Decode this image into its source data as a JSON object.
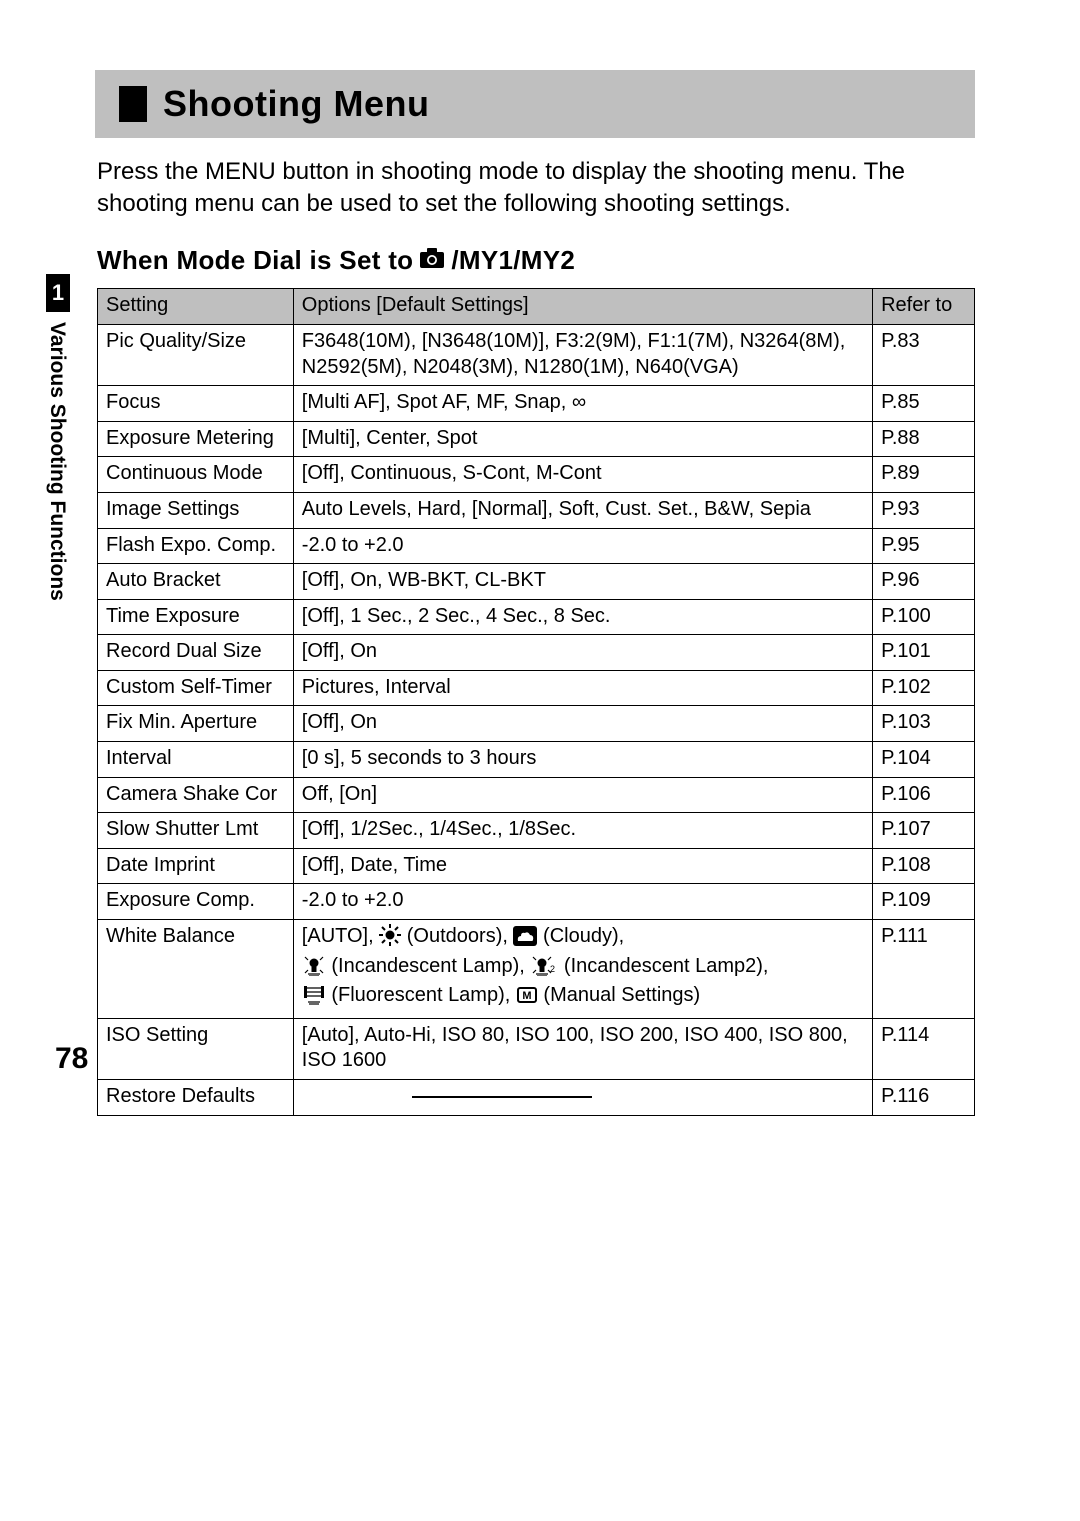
{
  "title": "Shooting Menu",
  "introText": "Press the MENU button in shooting mode to display the shooting menu. The shooting menu can be used to set the following shooting settings.",
  "subheadPrefix": "When Mode Dial is Set to ",
  "subheadSuffix": "/MY1/MY2",
  "sideTabNumber": "1",
  "sideLabel": "Various Shooting Functions",
  "pageNumber": "78",
  "table": {
    "headers": {
      "setting": "Setting",
      "options": "Options [Default Settings]",
      "refer": "Refer to"
    },
    "rows": [
      {
        "setting": "Pic Quality/Size",
        "options": "F3648(10M), [N3648(10M)], F3:2(9M), F1:1(7M), N3264(8M), N2592(5M), N2048(3M), N1280(1M), N640(VGA)",
        "ref": "P.83"
      },
      {
        "setting": "Focus",
        "options": "[Multi AF], Spot AF, MF, Snap, ∞",
        "ref": "P.85"
      },
      {
        "setting": "Exposure Metering",
        "options": "[Multi], Center, Spot",
        "ref": "P.88"
      },
      {
        "setting": "Continuous Mode",
        "options": "[Off], Continuous, S-Cont, M-Cont",
        "ref": "P.89"
      },
      {
        "setting": "Image Settings",
        "options": "Auto Levels, Hard, [Normal], Soft, Cust. Set., B&W, Sepia",
        "ref": "P.93"
      },
      {
        "setting": "Flash Expo. Comp.",
        "options": "-2.0 to +2.0",
        "ref": "P.95"
      },
      {
        "setting": "Auto Bracket",
        "options": "[Off], On, WB-BKT, CL-BKT",
        "ref": "P.96"
      },
      {
        "setting": "Time Exposure",
        "options": "[Off], 1 Sec., 2 Sec., 4 Sec., 8 Sec.",
        "ref": "P.100"
      },
      {
        "setting": "Record Dual Size",
        "options": "[Off], On",
        "ref": "P.101"
      },
      {
        "setting": "Custom Self-Timer",
        "options": "Pictures, Interval",
        "ref": "P.102"
      },
      {
        "setting": "Fix Min. Aperture",
        "options": "[Off], On",
        "ref": "P.103"
      },
      {
        "setting": "Interval",
        "options": "[0 s], 5 seconds to 3 hours",
        "ref": "P.104"
      },
      {
        "setting": "Camera Shake Cor",
        "options": "Off, [On]",
        "ref": "P.106"
      },
      {
        "setting": "Slow Shutter Lmt",
        "options": "[Off], 1/2Sec., 1/4Sec., 1/8Sec.",
        "ref": "P.107"
      },
      {
        "setting": "Date Imprint",
        "options": "[Off], Date, Time",
        "ref": "P.108"
      },
      {
        "setting": "Exposure Comp.",
        "options": "-2.0 to +2.0",
        "ref": "P.109"
      },
      {
        "setting": "White Balance",
        "options_wb": true,
        "ref": "P.111",
        "wb": {
          "auto": "[AUTO],",
          "outdoors": " (Outdoors), ",
          "cloudy": " (Cloudy),",
          "incan1": " (Incandescent Lamp), ",
          "incan2": " (Incandescent Lamp2),",
          "fluor": " (Fluorescent Lamp), ",
          "manual": " (Manual Settings)"
        }
      },
      {
        "setting": "ISO Setting",
        "options": "[Auto], Auto-Hi, ISO 80, ISO 100, ISO 200, ISO 400, ISO 800, ISO 1600",
        "ref": "P.114"
      },
      {
        "setting": "Restore Defaults",
        "options_dash": true,
        "ref": "P.116"
      }
    ]
  },
  "style": {
    "pageWidth": 1080,
    "pageHeight": 1521,
    "colors": {
      "header_bg": "#bfbfbf",
      "text": "#000000",
      "background": "#ffffff",
      "border": "#000000"
    },
    "fontsizes": {
      "title": 36,
      "intro": 24,
      "subhead": 26,
      "table": 20,
      "pagenum": 30,
      "sidelabel": 21
    },
    "colWidths": {
      "setting": 196,
      "options": 580,
      "ref": 102
    }
  }
}
